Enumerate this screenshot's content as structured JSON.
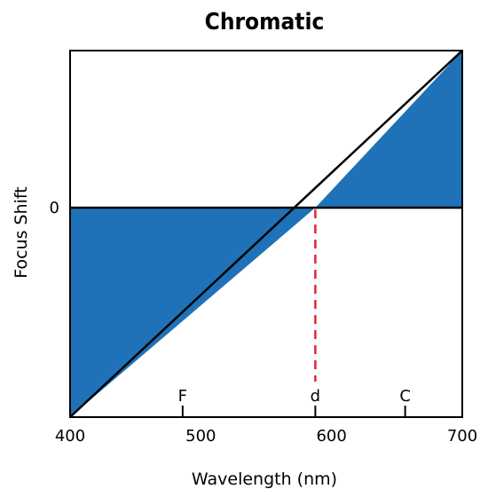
{
  "chart_data": {
    "type": "area",
    "title": "Chromatic",
    "xlabel": "Wavelength (nm)",
    "ylabel": "Focus Shift",
    "xlim": [
      400,
      700
    ],
    "ylim": [
      -1.0,
      0.75
    ],
    "x_ticks": [
      400,
      500,
      600,
      700
    ],
    "x_tick_labels": [
      "400",
      "500",
      "600",
      "700"
    ],
    "y_ticks": [
      0
    ],
    "y_tick_labels": [
      "0"
    ],
    "series": [
      {
        "x": [
          400,
          700
        ],
        "y": [
          -1.0,
          0.75
        ]
      }
    ],
    "zero_crossing": 587.6,
    "fill_between_series_and_zero": true,
    "wavelength_markers": [
      {
        "label": "F",
        "x": 486.1
      },
      {
        "label": "d",
        "x": 587.6
      },
      {
        "label": "C",
        "x": 656.3
      }
    ],
    "reference_line": {
      "x": 587.6,
      "style": "dashed"
    },
    "grid": false,
    "colors": {
      "fill": "#1f72b8",
      "line": "#000000",
      "reference_line": "#e3262d"
    }
  }
}
